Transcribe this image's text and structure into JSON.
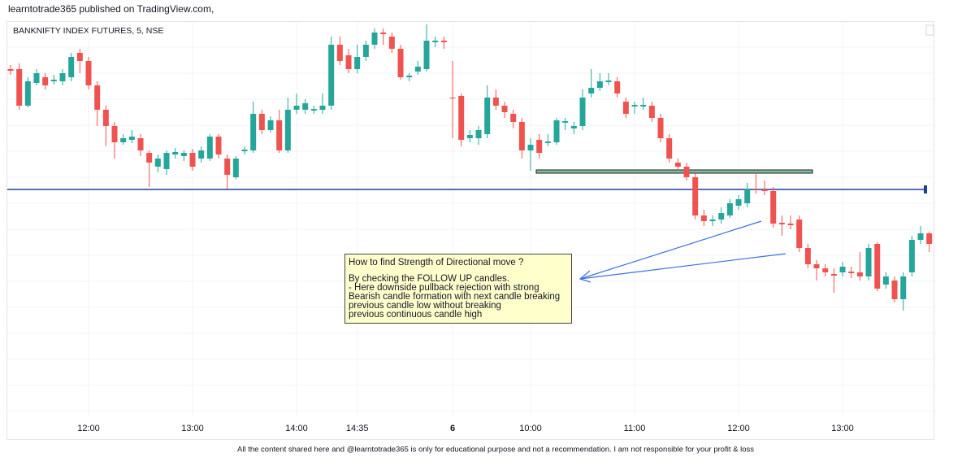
{
  "header": "learntotrade365 published on TradingView.com,",
  "footer": "All the content shared here and @learntotrade365 is only for educational purpose and not a recommendation. I am not responsible for your profit & loss",
  "annotation": {
    "lines": [
      "How to find Strength of Directional move ?",
      "By checking the FOLLOW UP candles.",
      "- Here downside pullback rejection with strong",
      "Bearish candle formation with next candle breaking",
      "previous candle low without breaking",
      "previous continuous candle high"
    ]
  },
  "chart_data": {
    "type": "candlestick",
    "title": "BANKNIFTY INDEX FUTURES, 5, NSE",
    "up_color": "#26a69a",
    "down_color": "#ef5350",
    "ylim": [
      0,
      480
    ],
    "categories": [
      null,
      null,
      null,
      null,
      null,
      null,
      null,
      null,
      null,
      "12:00",
      null,
      null,
      null,
      null,
      null,
      null,
      null,
      null,
      null,
      null,
      null,
      "13:00",
      null,
      null,
      null,
      null,
      null,
      null,
      null,
      null,
      null,
      null,
      null,
      "14:00",
      null,
      null,
      null,
      null,
      null,
      null,
      "14:35",
      null,
      null,
      null,
      null,
      null,
      null,
      null,
      null,
      null,
      null,
      "6",
      null,
      null,
      null,
      null,
      null,
      null,
      null,
      null,
      "10:00",
      null,
      null,
      null,
      null,
      null,
      null,
      null,
      null,
      null,
      null,
      null,
      "11:00",
      null,
      null,
      null,
      null,
      null,
      null,
      null,
      null,
      null,
      null,
      null,
      "12:00",
      null,
      null,
      null,
      null,
      null,
      null,
      null,
      null,
      null,
      null,
      null,
      "13:00",
      null,
      null,
      null,
      null,
      null,
      null,
      null,
      null,
      null,
      null
    ],
    "open": [
      425,
      425,
      380,
      408,
      415,
      410,
      410,
      415,
      445,
      435,
      405,
      375,
      355,
      335,
      338,
      340,
      322,
      305,
      302,
      320,
      318,
      322,
      315,
      315,
      342,
      315,
      292,
      324,
      325,
      370,
      350,
      362,
      325,
      375,
      375,
      374,
      375,
      380,
      455,
      442,
      425,
      440,
      455,
      470,
      465,
      450,
      415,
      422,
      425,
      458,
      460,
      390,
      392,
      340,
      340,
      345,
      390,
      380,
      370,
      360,
      325,
      338,
      334,
      335,
      359,
      352,
      355,
      395,
      402,
      409,
      410,
      385,
      379,
      379,
      380,
      365,
      340,
      310,
      305,
      292,
      245,
      238,
      240,
      245,
      257,
      260,
      278,
      277,
      275,
      236,
      235,
      240,
      205,
      185,
      180,
      173,
      175,
      176,
      175,
      170,
      210,
      160,
      165,
      142,
      175,
      215,
      223
    ],
    "high": [
      430,
      432,
      415,
      425,
      420,
      418,
      425,
      445,
      450,
      440,
      410,
      380,
      360,
      345,
      350,
      345,
      325,
      320,
      325,
      328,
      325,
      327,
      330,
      345,
      345,
      320,
      318,
      330,
      385,
      375,
      367,
      375,
      390,
      395,
      388,
      380,
      395,
      465,
      465,
      450,
      455,
      460,
      475,
      475,
      470,
      455,
      420,
      435,
      480,
      465,
      465,
      435,
      395,
      350,
      355,
      405,
      400,
      385,
      375,
      365,
      340,
      345,
      345,
      365,
      365,
      360,
      400,
      425,
      420,
      420,
      415,
      390,
      385,
      390,
      385,
      370,
      345,
      315,
      310,
      297,
      252,
      245,
      255,
      265,
      270,
      285,
      298,
      288,
      280,
      245,
      245,
      245,
      210,
      190,
      185,
      180,
      188,
      182,
      200,
      210,
      212,
      175,
      170,
      175,
      220,
      232,
      225
    ],
    "low": [
      418,
      375,
      378,
      405,
      400,
      406,
      405,
      410,
      420,
      400,
      355,
      330,
      315,
      332,
      334,
      318,
      280,
      298,
      295,
      315,
      312,
      300,
      310,
      312,
      315,
      278,
      290,
      320,
      322,
      345,
      347,
      322,
      322,
      370,
      370,
      370,
      370,
      375,
      430,
      420,
      420,
      435,
      450,
      455,
      445,
      412,
      410,
      418,
      422,
      452,
      450,
      340,
      330,
      335,
      332,
      340,
      375,
      365,
      352,
      315,
      300,
      315,
      330,
      332,
      350,
      345,
      350,
      390,
      398,
      405,
      390,
      365,
      370,
      375,
      360,
      335,
      310,
      300,
      288,
      240,
      232,
      232,
      235,
      242,
      252,
      255,
      272,
      270,
      230,
      220,
      228,
      200,
      180,
      165,
      170,
      150,
      170,
      168,
      165,
      165,
      152,
      155,
      138,
      128,
      170,
      210,
      200
    ],
    "close": [
      423,
      380,
      410,
      420,
      405,
      412,
      420,
      440,
      435,
      405,
      375,
      355,
      335,
      340,
      342,
      325,
      310,
      315,
      322,
      323,
      322,
      305,
      325,
      342,
      320,
      295,
      315,
      326,
      370,
      350,
      362,
      325,
      375,
      380,
      383,
      376,
      380,
      455,
      435,
      425,
      440,
      455,
      470,
      468,
      450,
      415,
      417,
      428,
      460,
      460,
      458,
      389,
      338,
      344,
      350,
      390,
      380,
      372,
      360,
      325,
      332,
      322,
      336,
      362,
      361,
      355,
      390,
      402,
      410,
      411,
      395,
      370,
      381,
      381,
      365,
      340,
      315,
      305,
      292,
      245,
      238,
      240,
      248,
      260,
      265,
      278,
      277,
      275,
      235,
      234,
      233,
      205,
      185,
      180,
      175,
      171,
      182,
      174,
      170,
      205,
      155,
      170,
      142,
      170,
      215,
      223,
      210
    ],
    "levels": [
      {
        "value": 277,
        "color": "#1f3f9e"
      },
      {
        "value": 299,
        "color": "#2f6b4f"
      }
    ]
  }
}
